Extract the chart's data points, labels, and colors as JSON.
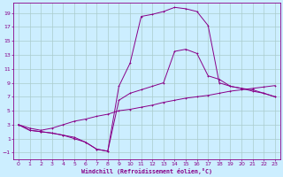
{
  "xlabel": "Windchill (Refroidissement éolien,°C)",
  "xlim": [
    -0.5,
    23.5
  ],
  "ylim": [
    -2.0,
    20.5
  ],
  "xticks": [
    0,
    1,
    2,
    3,
    4,
    5,
    6,
    7,
    8,
    9,
    10,
    11,
    12,
    13,
    14,
    15,
    16,
    17,
    18,
    19,
    20,
    21,
    22,
    23
  ],
  "yticks": [
    -1,
    1,
    3,
    5,
    7,
    9,
    11,
    13,
    15,
    17,
    19
  ],
  "bg_color": "#cceeff",
  "line_color": "#880088",
  "grid_color": "#aacccc",
  "line1_x": [
    0,
    1,
    2,
    3,
    4,
    5,
    6,
    7,
    8,
    9,
    10,
    11,
    12,
    13,
    14,
    15,
    16,
    17,
    18,
    19,
    20,
    21,
    22,
    23
  ],
  "line1_y": [
    3.0,
    2.2,
    2.0,
    1.8,
    1.5,
    1.2,
    0.5,
    -0.5,
    -0.8,
    8.5,
    11.8,
    18.5,
    18.8,
    19.2,
    19.8,
    19.6,
    19.2,
    17.2,
    9.0,
    8.5,
    8.2,
    8.0,
    7.5,
    7.0
  ],
  "line2_x": [
    0,
    1,
    2,
    3,
    4,
    5,
    6,
    7,
    8,
    9,
    10,
    11,
    12,
    13,
    14,
    15,
    16,
    17,
    18,
    19,
    20,
    21,
    22,
    23
  ],
  "line2_y": [
    3.0,
    2.2,
    2.0,
    1.8,
    1.5,
    1.0,
    0.5,
    -0.5,
    -0.8,
    6.5,
    7.5,
    8.0,
    8.5,
    9.0,
    13.5,
    13.8,
    13.2,
    10.0,
    9.5,
    8.5,
    8.2,
    7.8,
    7.5,
    7.0
  ],
  "line3_x": [
    0,
    1,
    2,
    3,
    4,
    5,
    6,
    7,
    8,
    9,
    10,
    11,
    12,
    13,
    14,
    15,
    16,
    17,
    18,
    19,
    20,
    21,
    22,
    23
  ],
  "line3_y": [
    3.0,
    2.5,
    2.2,
    2.5,
    3.0,
    3.5,
    3.8,
    4.2,
    4.5,
    5.0,
    5.2,
    5.5,
    5.8,
    6.2,
    6.5,
    6.8,
    7.0,
    7.2,
    7.5,
    7.8,
    8.0,
    8.2,
    8.4,
    8.6
  ]
}
